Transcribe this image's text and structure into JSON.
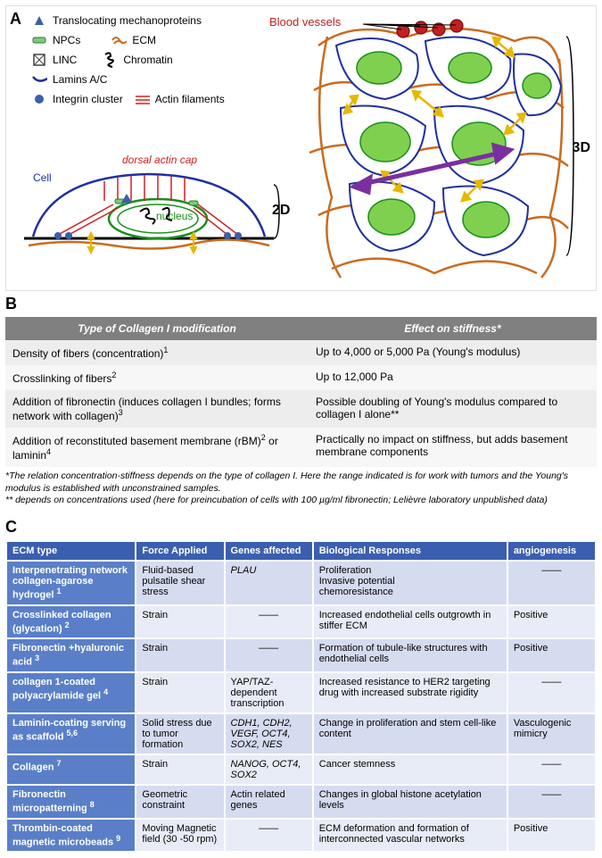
{
  "panelA": {
    "label": "A",
    "legend": [
      {
        "icon": "triangle",
        "text": "Translocating mechanoproteins"
      },
      {
        "icon": "npc",
        "text": "NPCs"
      },
      {
        "icon": "ecm",
        "text": "ECM"
      },
      {
        "icon": "linc",
        "text": "LINC"
      },
      {
        "icon": "chromatin",
        "text": "Chromatin"
      },
      {
        "icon": "lamin",
        "text": "Lamins A/C"
      },
      {
        "icon": "integrin",
        "text": "Integrin cluster"
      },
      {
        "icon": "actin",
        "text": "Actin filaments"
      }
    ],
    "labels": {
      "bloodVessels": "Blood vessels",
      "cell": "Cell",
      "dorsalCap": "dorsal actin cap",
      "nucleus": "nucleus",
      "twoD": "2D",
      "threeD": "3D"
    },
    "colors": {
      "cellOutline": "#2030a0",
      "nucleusFill": "#5fbf3f",
      "nucleusStroke": "#1a8f1a",
      "ecm": "#c96b1f",
      "actin": "#d02020",
      "blood": "#c02020",
      "integrin": "#3a5fb0",
      "arrow": "#e6b800",
      "purpleArrow": "#7a2fa0",
      "chromatin": "#000000"
    }
  },
  "panelB": {
    "label": "B",
    "headers": [
      "Type of Collagen I modification",
      "Effect on stiffness*"
    ],
    "rows": [
      [
        "Density of fibers (concentration)<sup>1</sup>",
        "Up to 4,000 or 5,000 Pa (Young's modulus)"
      ],
      [
        "Crosslinking of fibers<sup>2</sup>",
        "Up to 12,000 Pa"
      ],
      [
        "Addition of fibronectin (induces collagen I bundles; forms network with collagen)<sup>3</sup>",
        "Possible doubling of Young's modulus compared to collagen I alone**"
      ],
      [
        "Addition of reconstituted basement membrane (rBM)<sup>2</sup> or laminin<sup>4</sup>",
        "Practically no impact on stiffness, but adds basement membrane components"
      ]
    ],
    "footnotes": [
      "*The relation concentration-stiffness depends on the type of collagen I. Here the range indicated is for work with tumors and the Young's modulus is established with unconstrained samples.",
      "** depends on concentrations used (here for preincubation of cells with 100 µg/ml fibronectin; Lelièvre laboratory unpublished data)"
    ],
    "colors": {
      "header_bg": "#808080",
      "header_fg": "#ffffff",
      "row_alt_a": "#ededed",
      "row_alt_b": "#f7f7f7"
    }
  },
  "panelC": {
    "label": "C",
    "headers": [
      "ECM type",
      "Force Applied",
      "Genes affected",
      "Biological Responses",
      "angiogenesis"
    ],
    "rows": [
      {
        "ecm": "Interpenetrating network collagen-agarose hydrogel <span class='sup'>1</span>",
        "force": "Fluid-based pulsatile shear stress",
        "genes": "PLAU",
        "bio": "Proliferation<br>Invasive potential<br>chemoresistance",
        "angio": "——"
      },
      {
        "ecm": "Crosslinked collagen (glycation) <span class='sup'>2</span>",
        "force": "Strain",
        "genes": "——",
        "bio": "Increased endothelial cells outgrowth in stiffer ECM",
        "angio": "Positive"
      },
      {
        "ecm": "Fibronectin +hyaluronic acid <span class='sup'>3</span>",
        "force": "Strain",
        "genes": "——",
        "bio": "Formation of tubule-like structures with endothelial cells",
        "angio": "Positive"
      },
      {
        "ecm": "collagen 1-coated polyacrylamide gel <span class='sup'>4</span>",
        "force": "Strain",
        "genes": "YAP/TAZ-dependent transcription",
        "bio": "Increased resistance to HER2 targeting drug with increased substrate rigidity",
        "angio": "——"
      },
      {
        "ecm": "Laminin-coating serving as scaffold <span class='sup'>5,6</span>",
        "force": "Solid stress due to tumor formation",
        "genes": "CDH1, CDH2, VEGF, OCT4, SOX2, NES",
        "bio": "Change in proliferation and stem cell-like content",
        "angio": "Vasculogenic mimicry"
      },
      {
        "ecm": "Collagen <span class='sup'>7</span>",
        "force": "Strain",
        "genes": "NANOG, OCT4, SOX2",
        "bio": "Cancer stemness",
        "angio": "——"
      },
      {
        "ecm": "Fibronectin micropatterning <span class='sup'>8</span>",
        "force": "Geometric constraint",
        "genes": "Actin related genes",
        "bio": "Changes in global histone acetylation levels",
        "angio": "——"
      },
      {
        "ecm": "Thrombin-coated magnetic microbeads <span class='sup'>9</span>",
        "force": "Moving Magnetic field (30 -50 rpm)",
        "genes": "——",
        "bio": "ECM deformation and formation of interconnected vascular networks",
        "angio": "Positive"
      }
    ],
    "colors": {
      "header_bg": "#3a5fb0",
      "header_fg": "#ffffff",
      "col1_bg": "#5a7fc8",
      "row_even": "#d6dcf0",
      "row_odd": "#e8ecf6",
      "border": "#ffffff"
    },
    "geneItalic": {
      "0": true,
      "4": true,
      "5": true
    }
  }
}
